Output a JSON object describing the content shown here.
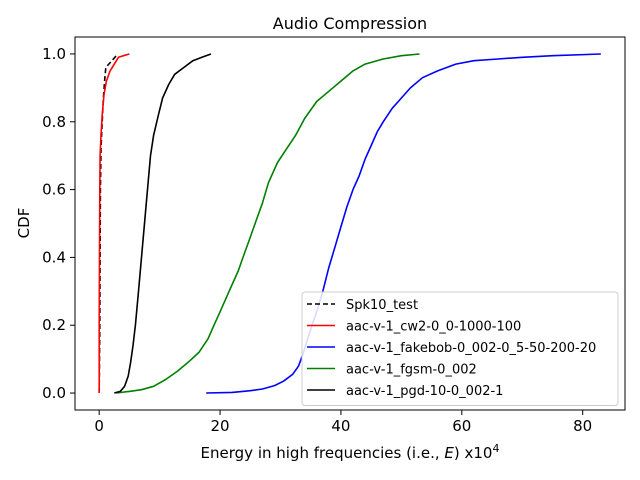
{
  "chart_data": {
    "type": "line",
    "title": "Audio Compression",
    "xlabel_prefix": "Energy in high frequencies (i.e., ",
    "xlabel_var": "E",
    "xlabel_suffix": ") x10",
    "xlabel_exp": "4",
    "ylabel": "CDF",
    "xlim": [
      -4,
      87
    ],
    "ylim": [
      -0.05,
      1.05
    ],
    "x_ticks": [
      0,
      20,
      40,
      60,
      80
    ],
    "y_ticks": [
      0.0,
      0.2,
      0.4,
      0.6,
      0.8,
      1.0
    ],
    "grid": false,
    "legend_position": "lower-right",
    "series": [
      {
        "name": "Spk10_test",
        "color": "#000000",
        "dashed": true,
        "points": [
          [
            0.0,
            0.0
          ],
          [
            0.05,
            0.1
          ],
          [
            0.1,
            0.2
          ],
          [
            0.15,
            0.4
          ],
          [
            0.2,
            0.6
          ],
          [
            0.3,
            0.72
          ],
          [
            0.5,
            0.8
          ],
          [
            0.7,
            0.87
          ],
          [
            0.9,
            0.92
          ],
          [
            1.1,
            0.96
          ],
          [
            1.6,
            0.97
          ],
          [
            2.1,
            0.98
          ],
          [
            2.6,
            0.99
          ],
          [
            3.0,
            1.0
          ]
        ]
      },
      {
        "name": "aac-v-1_cw2-0_0-1000-100",
        "color": "#ff0000",
        "dashed": false,
        "points": [
          [
            0.0,
            0.0
          ],
          [
            0.0,
            0.2
          ],
          [
            0.05,
            0.4
          ],
          [
            0.1,
            0.6
          ],
          [
            0.15,
            0.7
          ],
          [
            0.3,
            0.76
          ],
          [
            0.5,
            0.82
          ],
          [
            0.8,
            0.88
          ],
          [
            1.2,
            0.92
          ],
          [
            1.8,
            0.95
          ],
          [
            2.5,
            0.97
          ],
          [
            3.2,
            0.99
          ],
          [
            4.0,
            0.995
          ],
          [
            5.0,
            1.0
          ]
        ]
      },
      {
        "name": "aac-v-1_fakebob-0_002-0_5-50-200-20",
        "color": "#0000ff",
        "dashed": false,
        "points": [
          [
            17.7,
            0.0
          ],
          [
            22.0,
            0.002
          ],
          [
            25.0,
            0.007
          ],
          [
            27.0,
            0.012
          ],
          [
            29.0,
            0.022
          ],
          [
            30.5,
            0.035
          ],
          [
            32.0,
            0.055
          ],
          [
            33.0,
            0.08
          ],
          [
            33.8,
            0.12
          ],
          [
            34.5,
            0.16
          ],
          [
            35.2,
            0.2
          ],
          [
            36.0,
            0.24
          ],
          [
            37.0,
            0.3
          ],
          [
            38.0,
            0.37
          ],
          [
            39.0,
            0.43
          ],
          [
            40.0,
            0.49
          ],
          [
            41.0,
            0.55
          ],
          [
            42.0,
            0.6
          ],
          [
            43.0,
            0.64
          ],
          [
            44.0,
            0.69
          ],
          [
            45.0,
            0.73
          ],
          [
            46.0,
            0.77
          ],
          [
            47.0,
            0.8
          ],
          [
            48.5,
            0.84
          ],
          [
            50.0,
            0.87
          ],
          [
            51.5,
            0.9
          ],
          [
            53.5,
            0.93
          ],
          [
            56.0,
            0.95
          ],
          [
            59.0,
            0.97
          ],
          [
            62.0,
            0.98
          ],
          [
            66.0,
            0.985
          ],
          [
            70.0,
            0.99
          ],
          [
            75.0,
            0.995
          ],
          [
            83.0,
            1.0
          ]
        ]
      },
      {
        "name": "aac-v-1_fgsm-0_002",
        "color": "#008000",
        "dashed": false,
        "points": [
          [
            2.8,
            0.0
          ],
          [
            5.0,
            0.005
          ],
          [
            7.0,
            0.01
          ],
          [
            9.0,
            0.02
          ],
          [
            11.0,
            0.04
          ],
          [
            13.0,
            0.065
          ],
          [
            15.0,
            0.095
          ],
          [
            16.5,
            0.12
          ],
          [
            18.0,
            0.16
          ],
          [
            19.0,
            0.2
          ],
          [
            20.0,
            0.24
          ],
          [
            21.5,
            0.3
          ],
          [
            23.0,
            0.36
          ],
          [
            24.0,
            0.41
          ],
          [
            25.0,
            0.46
          ],
          [
            26.0,
            0.51
          ],
          [
            27.0,
            0.56
          ],
          [
            28.0,
            0.62
          ],
          [
            29.5,
            0.68
          ],
          [
            31.0,
            0.72
          ],
          [
            32.5,
            0.76
          ],
          [
            34.0,
            0.81
          ],
          [
            36.0,
            0.86
          ],
          [
            38.0,
            0.89
          ],
          [
            40.0,
            0.92
          ],
          [
            42.0,
            0.95
          ],
          [
            44.0,
            0.97
          ],
          [
            47.0,
            0.985
          ],
          [
            50.0,
            0.995
          ],
          [
            53.0,
            1.0
          ]
        ]
      },
      {
        "name": "aac-v-1_pgd-10-0_002-1",
        "color": "#000000",
        "dashed": false,
        "points": [
          [
            2.5,
            0.0
          ],
          [
            3.5,
            0.005
          ],
          [
            4.2,
            0.02
          ],
          [
            4.8,
            0.05
          ],
          [
            5.2,
            0.09
          ],
          [
            5.6,
            0.14
          ],
          [
            6.0,
            0.2
          ],
          [
            6.5,
            0.3
          ],
          [
            7.0,
            0.4
          ],
          [
            7.5,
            0.5
          ],
          [
            8.0,
            0.6
          ],
          [
            8.5,
            0.7
          ],
          [
            9.0,
            0.76
          ],
          [
            9.8,
            0.82
          ],
          [
            10.5,
            0.87
          ],
          [
            11.5,
            0.91
          ],
          [
            12.5,
            0.94
          ],
          [
            14.0,
            0.96
          ],
          [
            15.5,
            0.98
          ],
          [
            17.0,
            0.99
          ],
          [
            18.5,
            1.0
          ]
        ]
      }
    ]
  }
}
